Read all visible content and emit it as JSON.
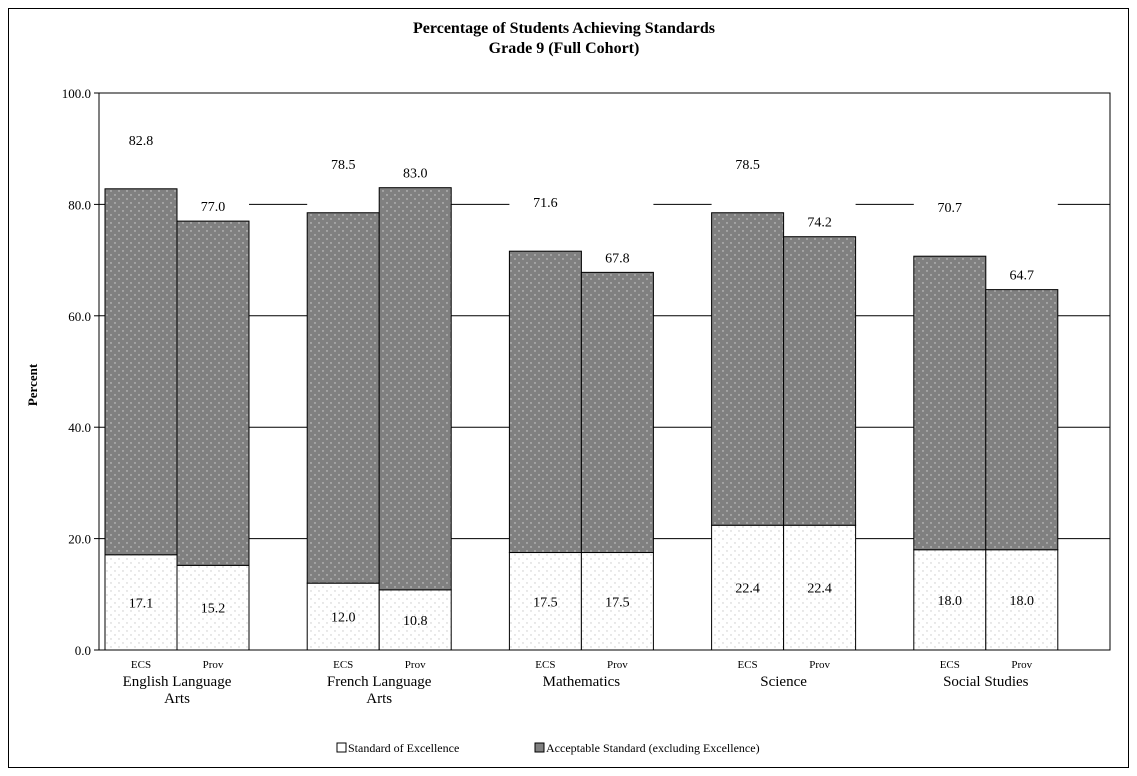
{
  "chart_data": {
    "type": "bar",
    "stacked": true,
    "title": "Percentage of Students Achieving Standards",
    "subtitle": "Grade 9 (Full Cohort)",
    "ylabel": "Percent",
    "ylim": [
      0,
      100
    ],
    "yticks": [
      "0.0",
      "20.0",
      "40.0",
      "60.0",
      "80.0",
      "100.0"
    ],
    "grid": true,
    "legend_position": "bottom",
    "groups": [
      {
        "name": "English Language Arts",
        "label_lines": [
          "English Language",
          "Arts"
        ],
        "bars": [
          {
            "label": "ECS",
            "excellence": 17.1,
            "total": 82.8,
            "excellence_label": "17.1",
            "total_label": "82.8"
          },
          {
            "label": "Prov",
            "excellence": 15.2,
            "total": 77.0,
            "excellence_label": "15.2",
            "total_label": "77.0"
          }
        ]
      },
      {
        "name": "French Language Arts",
        "label_lines": [
          "French Language",
          "Arts"
        ],
        "bars": [
          {
            "label": "ECS",
            "excellence": 12.0,
            "total": 78.5,
            "excellence_label": "12.0",
            "total_label": "78.5"
          },
          {
            "label": "Prov",
            "excellence": 10.8,
            "total": 83.0,
            "excellence_label": "10.8",
            "total_label": "83.0"
          }
        ]
      },
      {
        "name": "Mathematics",
        "label_lines": [
          "Mathematics"
        ],
        "bars": [
          {
            "label": "ECS",
            "excellence": 17.5,
            "total": 71.6,
            "excellence_label": "17.5",
            "total_label": "71.6"
          },
          {
            "label": "Prov",
            "excellence": 17.5,
            "total": 67.8,
            "excellence_label": "17.5",
            "total_label": "67.8"
          }
        ]
      },
      {
        "name": "Science",
        "label_lines": [
          "Science"
        ],
        "bars": [
          {
            "label": "ECS",
            "excellence": 22.4,
            "total": 78.5,
            "excellence_label": "22.4",
            "total_label": "78.5"
          },
          {
            "label": "Prov",
            "excellence": 22.4,
            "total": 74.2,
            "excellence_label": "22.4",
            "total_label": "74.2"
          }
        ]
      },
      {
        "name": "Social Studies",
        "label_lines": [
          "Social Studies"
        ],
        "bars": [
          {
            "label": "ECS",
            "excellence": 18.0,
            "total": 70.7,
            "excellence_label": "18.0",
            "total_label": "70.7"
          },
          {
            "label": "Prov",
            "excellence": 18.0,
            "total": 64.7,
            "excellence_label": "18.0",
            "total_label": "64.7"
          }
        ]
      }
    ],
    "series": [
      {
        "name": "Standard of Excellence",
        "color": "#ffffff",
        "dot_color": "#c8c8c8"
      },
      {
        "name": "Acceptable Standard (excluding Excellence)",
        "color": "#808080",
        "dot_color": "#d8d8d8"
      }
    ]
  }
}
